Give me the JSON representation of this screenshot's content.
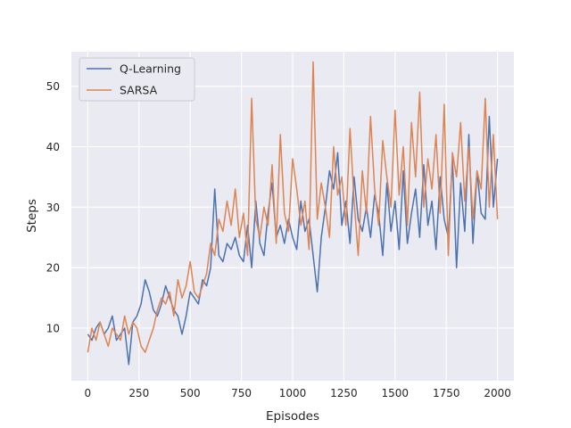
{
  "chart_data": {
    "type": "line",
    "title": "",
    "xlabel": "Episodes",
    "ylabel": "Steps",
    "xlim": [
      -80,
      2080
    ],
    "ylim": [
      1.3,
      55.7
    ],
    "xticks": [
      0,
      250,
      500,
      750,
      1000,
      1250,
      1500,
      1750,
      2000
    ],
    "yticks": [
      10,
      20,
      30,
      40,
      50
    ],
    "grid": true,
    "legend_position": "top-left",
    "background": "#eaeaf2",
    "series": [
      {
        "name": "Q-Learning",
        "color": "#4c72b0",
        "x": [
          0,
          20,
          40,
          60,
          80,
          100,
          120,
          140,
          160,
          180,
          200,
          220,
          240,
          260,
          280,
          300,
          320,
          340,
          360,
          380,
          400,
          420,
          440,
          460,
          480,
          500,
          520,
          540,
          560,
          580,
          600,
          620,
          640,
          660,
          680,
          700,
          720,
          740,
          760,
          780,
          800,
          820,
          840,
          860,
          880,
          900,
          920,
          940,
          960,
          980,
          1000,
          1020,
          1040,
          1060,
          1080,
          1100,
          1120,
          1140,
          1160,
          1180,
          1200,
          1220,
          1240,
          1260,
          1280,
          1300,
          1320,
          1340,
          1360,
          1380,
          1400,
          1420,
          1440,
          1460,
          1480,
          1500,
          1520,
          1540,
          1560,
          1580,
          1600,
          1620,
          1640,
          1660,
          1680,
          1700,
          1720,
          1740,
          1760,
          1780,
          1800,
          1820,
          1840,
          1860,
          1880,
          1900,
          1920,
          1940,
          1960,
          1980,
          2000
        ],
        "values": [
          9,
          8,
          10,
          11,
          9,
          10,
          12,
          8,
          9,
          10,
          4,
          11,
          12,
          14,
          18,
          16,
          13,
          12,
          14,
          17,
          15,
          13,
          12,
          9,
          12,
          16,
          15,
          14,
          18,
          17,
          20,
          33,
          22,
          21,
          24,
          23,
          25,
          22,
          21,
          27,
          20,
          31,
          24,
          22,
          29,
          34,
          25,
          27,
          24,
          28,
          25,
          23,
          31,
          26,
          28,
          22,
          16,
          25,
          30,
          36,
          33,
          39,
          27,
          31,
          24,
          35,
          28,
          26,
          30,
          25,
          32,
          29,
          22,
          34,
          26,
          31,
          23,
          36,
          24,
          29,
          33,
          25,
          37,
          27,
          31,
          23,
          35,
          28,
          25,
          38,
          20,
          34,
          26,
          42,
          24,
          36,
          29,
          28,
          45,
          30,
          38
        ]
      },
      {
        "name": "SARSA",
        "color": "#dd8452",
        "x": [
          0,
          20,
          40,
          60,
          80,
          100,
          120,
          140,
          160,
          180,
          200,
          220,
          240,
          260,
          280,
          300,
          320,
          340,
          360,
          380,
          400,
          420,
          440,
          460,
          480,
          500,
          520,
          540,
          560,
          580,
          600,
          620,
          640,
          660,
          680,
          700,
          720,
          740,
          760,
          780,
          800,
          820,
          840,
          860,
          880,
          900,
          920,
          940,
          960,
          980,
          1000,
          1020,
          1040,
          1060,
          1080,
          1100,
          1120,
          1140,
          1160,
          1180,
          1200,
          1220,
          1240,
          1260,
          1280,
          1300,
          1320,
          1340,
          1360,
          1380,
          1400,
          1420,
          1440,
          1460,
          1480,
          1500,
          1520,
          1540,
          1560,
          1580,
          1600,
          1620,
          1640,
          1660,
          1680,
          1700,
          1720,
          1740,
          1760,
          1780,
          1800,
          1820,
          1840,
          1860,
          1880,
          1900,
          1920,
          1940,
          1960,
          1980,
          2000
        ],
        "values": [
          6,
          10,
          8,
          11,
          9,
          7,
          10,
          9,
          8,
          12,
          9,
          11,
          10,
          7,
          6,
          8,
          10,
          13,
          15,
          14,
          16,
          12,
          18,
          15,
          17,
          21,
          16,
          15,
          17,
          19,
          24,
          22,
          28,
          26,
          31,
          27,
          33,
          25,
          29,
          22,
          48,
          28,
          25,
          30,
          27,
          37,
          24,
          42,
          29,
          26,
          38,
          33,
          27,
          31,
          23,
          54,
          28,
          34,
          30,
          25,
          40,
          32,
          35,
          27,
          43,
          31,
          22,
          36,
          29,
          45,
          33,
          27,
          41,
          35,
          30,
          46,
          32,
          40,
          27,
          44,
          35,
          49,
          30,
          38,
          33,
          42,
          29,
          47,
          22,
          39,
          35,
          44,
          31,
          40,
          28,
          36,
          33,
          48,
          30,
          42,
          28
        ]
      }
    ]
  }
}
